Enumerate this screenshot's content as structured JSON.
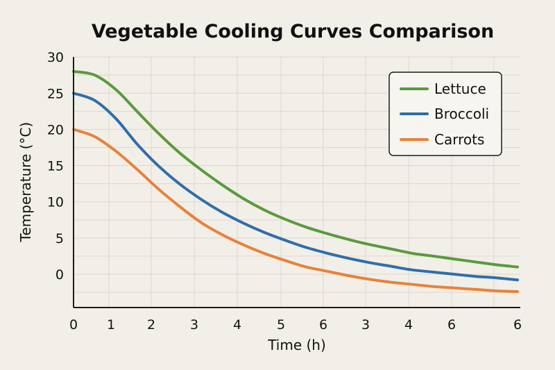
{
  "chart_data": {
    "type": "line",
    "title": "Vegetable Cooling Curves Comparison",
    "xlabel": "Time (h)",
    "ylabel": "Temperature (°C)",
    "x_tick_labels": [
      "0",
      "1",
      "2",
      "3",
      "4",
      "5",
      "6",
      "3",
      "4",
      "6",
      "6"
    ],
    "y_tick_labels": [
      "0",
      "5",
      "10",
      "15",
      "20",
      "25",
      "30"
    ],
    "y_ticks": [
      0,
      5,
      10,
      15,
      20,
      25,
      30
    ],
    "ylim": [
      -4.5,
      30
    ],
    "grid": true,
    "legend_position": "top-right",
    "series": [
      {
        "name": "Lettuce",
        "color": "#5a9a3c",
        "values": [
          28.0,
          27.5,
          25.5,
          22.5,
          19.5,
          16.8,
          14.5,
          12.4,
          10.5,
          8.9,
          7.6,
          6.5,
          5.6,
          4.8,
          4.1,
          3.5,
          2.9,
          2.5,
          2.1,
          1.7,
          1.3,
          1.0
        ]
      },
      {
        "name": "Broccoli",
        "color": "#2f6ea8",
        "values": [
          25.0,
          24.0,
          21.5,
          18.0,
          15.0,
          12.5,
          10.4,
          8.6,
          7.1,
          5.8,
          4.7,
          3.7,
          2.9,
          2.2,
          1.6,
          1.1,
          0.6,
          0.3,
          0.0,
          -0.3,
          -0.5,
          -0.8
        ]
      },
      {
        "name": "Carrots",
        "color": "#e8823a",
        "values": [
          20.0,
          19.0,
          17.0,
          14.5,
          11.8,
          9.4,
          7.2,
          5.5,
          4.1,
          2.9,
          1.9,
          1.0,
          0.4,
          -0.2,
          -0.7,
          -1.1,
          -1.4,
          -1.7,
          -1.9,
          -2.1,
          -2.3,
          -2.4
        ]
      }
    ]
  }
}
